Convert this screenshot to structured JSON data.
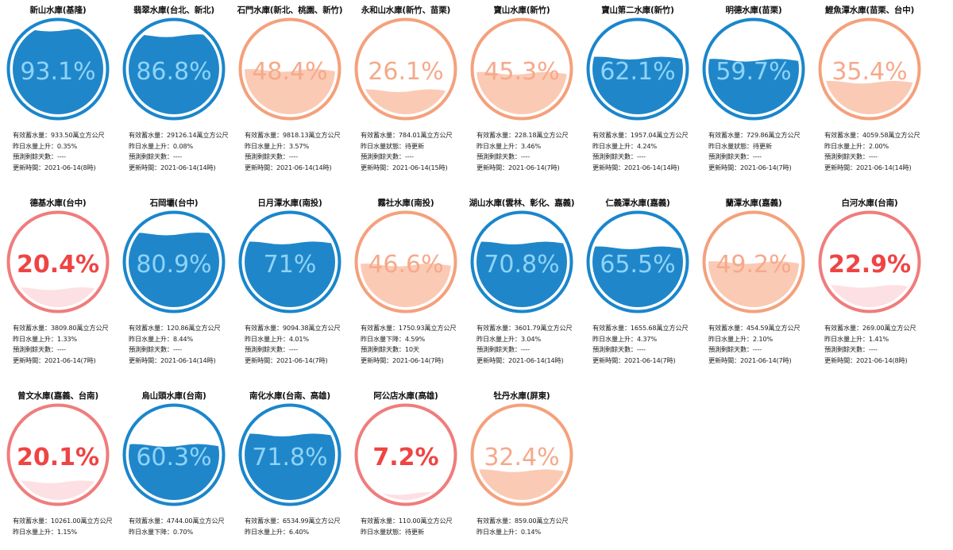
{
  "colors": {
    "blue_ring": "#1a86cc",
    "blue_fill": "#1f87c9",
    "blue_text": "#8fd3f8",
    "orange_ring": "#f4a17c",
    "orange_fill": "#fbcab4",
    "orange_text": "#f6a98a",
    "red_ring": "#f07c7c",
    "red_fill": "#fde0e3",
    "red_text": "#ef4444"
  },
  "reservoirs": [
    {
      "name": "新山水庫(基隆)",
      "percent_label": "93.1%",
      "level": 93.1,
      "status": "blue",
      "lines": [
        "有效蓄水量：933.50萬立方公尺",
        "昨日水量上升：0.35%",
        "預測剩餘天數：----",
        "更新時間：2021-06-14(8時)"
      ]
    },
    {
      "name": "翡翠水庫(台北、新北)",
      "percent_label": "86.8%",
      "level": 86.8,
      "status": "blue",
      "lines": [
        "有效蓄水量：29126.14萬立方公尺",
        "昨日水量上升：0.08%",
        "預測剩餘天數：----",
        "更新時間：2021-06-14(14時)"
      ]
    },
    {
      "name": "石門水庫(新北、桃園、新竹)",
      "percent_label": "48.4%",
      "level": 48.4,
      "status": "orange",
      "lines": [
        "有效蓄水量：9818.13萬立方公尺",
        "昨日水量上升：3.57%",
        "預測剩餘天數：----",
        "更新時間：2021-06-14(14時)"
      ]
    },
    {
      "name": "永和山水庫(新竹、苗栗)",
      "percent_label": "26.1%",
      "level": 26.1,
      "status": "orange",
      "lines": [
        "有效蓄水量：784.01萬立方公尺",
        "昨日水量狀態：待更新",
        "預測剩餘天數：----",
        "更新時間：2021-06-14(15時)"
      ]
    },
    {
      "name": "寶山水庫(新竹)",
      "percent_label": "45.3%",
      "level": 45.3,
      "status": "orange",
      "lines": [
        "有效蓄水量：228.18萬立方公尺",
        "昨日水量上升：3.46%",
        "預測剩餘天數：----",
        "更新時間：2021-06-14(7時)"
      ]
    },
    {
      "name": "寶山第二水庫(新竹)",
      "percent_label": "62.1%",
      "level": 62.1,
      "status": "blue",
      "lines": [
        "有效蓄水量：1957.04萬立方公尺",
        "昨日水量上升：4.24%",
        "預測剩餘天數：----",
        "更新時間：2021-06-14(14時)"
      ]
    },
    {
      "name": "明德水庫(苗栗)",
      "percent_label": "59.7%",
      "level": 59.7,
      "status": "blue",
      "lines": [
        "有效蓄水量：729.86萬立方公尺",
        "昨日水量狀態：待更新",
        "預測剩餘天數：----",
        "更新時間：2021-06-14(7時)"
      ]
    },
    {
      "name": "鯉魚潭水庫(苗栗、台中)",
      "percent_label": "35.4%",
      "level": 35.4,
      "status": "orange",
      "lines": [
        "有效蓄水量：4059.58萬立方公尺",
        "昨日水量上升：2.00%",
        "預測剩餘天數：----",
        "更新時間：2021-06-14(14時)"
      ]
    },
    {
      "name": "德基水庫(台中)",
      "percent_label": "20.4%",
      "level": 20.4,
      "status": "red",
      "lines": [
        "有效蓄水量：3809.80萬立方公尺",
        "昨日水量上升：1.33%",
        "預測剩餘天數：----",
        "更新時間：2021-06-14(7時)"
      ]
    },
    {
      "name": "石岡壩(台中)",
      "percent_label": "80.9%",
      "level": 80.9,
      "status": "blue",
      "lines": [
        "有效蓄水量：120.86萬立方公尺",
        "昨日水量上升：8.44%",
        "預測剩餘天數：----",
        "更新時間：2021-06-14(14時)"
      ]
    },
    {
      "name": "日月潭水庫(南投)",
      "percent_label": "71%",
      "level": 71,
      "status": "blue",
      "lines": [
        "有效蓄水量：9094.38萬立方公尺",
        "昨日水量上升：4.01%",
        "預測剩餘天數：----",
        "更新時間：2021-06-14(7時)"
      ]
    },
    {
      "name": "霧社水庫(南投)",
      "percent_label": "46.6%",
      "level": 46.6,
      "status": "orange",
      "lines": [
        "有效蓄水量：1750.93萬立方公尺",
        "昨日水量下降：4.59%",
        "預測剩餘天數：10天",
        "更新時間：2021-06-14(7時)"
      ]
    },
    {
      "name": "湖山水庫(雲林、彰化、嘉義)",
      "percent_label": "70.8%",
      "level": 70.8,
      "status": "blue",
      "lines": [
        "有效蓄水量：3601.79萬立方公尺",
        "昨日水量上升：3.04%",
        "預測剩餘天數：----",
        "更新時間：2021-06-14(14時)"
      ]
    },
    {
      "name": "仁義潭水庫(嘉義)",
      "percent_label": "65.5%",
      "level": 65.5,
      "status": "blue",
      "lines": [
        "有效蓄水量：1655.68萬立方公尺",
        "昨日水量上升：4.37%",
        "預測剩餘天數：----",
        "更新時間：2021-06-14(7時)"
      ]
    },
    {
      "name": "蘭潭水庫(嘉義)",
      "percent_label": "49.2%",
      "level": 49.2,
      "status": "orange",
      "lines": [
        "有效蓄水量：454.59萬立方公尺",
        "昨日水量上升：2.10%",
        "預測剩餘天數：----",
        "更新時間：2021-06-14(7時)"
      ]
    },
    {
      "name": "白河水庫(台南)",
      "percent_label": "22.9%",
      "level": 22.9,
      "status": "red",
      "lines": [
        "有效蓄水量：269.00萬立方公尺",
        "昨日水量上升：1.41%",
        "預測剩餘天數：----",
        "更新時間：2021-06-14(8時)"
      ]
    },
    {
      "name": "曾文水庫(嘉義、台南)",
      "percent_label": "20.1%",
      "level": 20.1,
      "status": "red",
      "lines": [
        "有效蓄水量：10261.00萬立方公尺",
        "昨日水量上升：1.15%"
      ]
    },
    {
      "name": "烏山頭水庫(台南)",
      "percent_label": "60.3%",
      "level": 60.3,
      "status": "blue",
      "lines": [
        "有效蓄水量：4744.00萬立方公尺",
        "昨日水量下降：0.70%"
      ]
    },
    {
      "name": "南化水庫(台南、高雄)",
      "percent_label": "71.8%",
      "level": 71.8,
      "status": "blue",
      "lines": [
        "有效蓄水量：6534.99萬立方公尺",
        "昨日水量上升：6.40%"
      ]
    },
    {
      "name": "阿公店水庫(高雄)",
      "percent_label": "7.2%",
      "level": 7.2,
      "status": "red",
      "lines": [
        "有效蓄水量：110.00萬立方公尺",
        "昨日水量狀態：待更新"
      ]
    },
    {
      "name": "牡丹水庫(屏東)",
      "percent_label": "32.4%",
      "level": 32.4,
      "status": "orange",
      "lines": [
        "有效蓄水量：859.00萬立方公尺",
        "昨日水量上升：0.14%"
      ]
    }
  ]
}
